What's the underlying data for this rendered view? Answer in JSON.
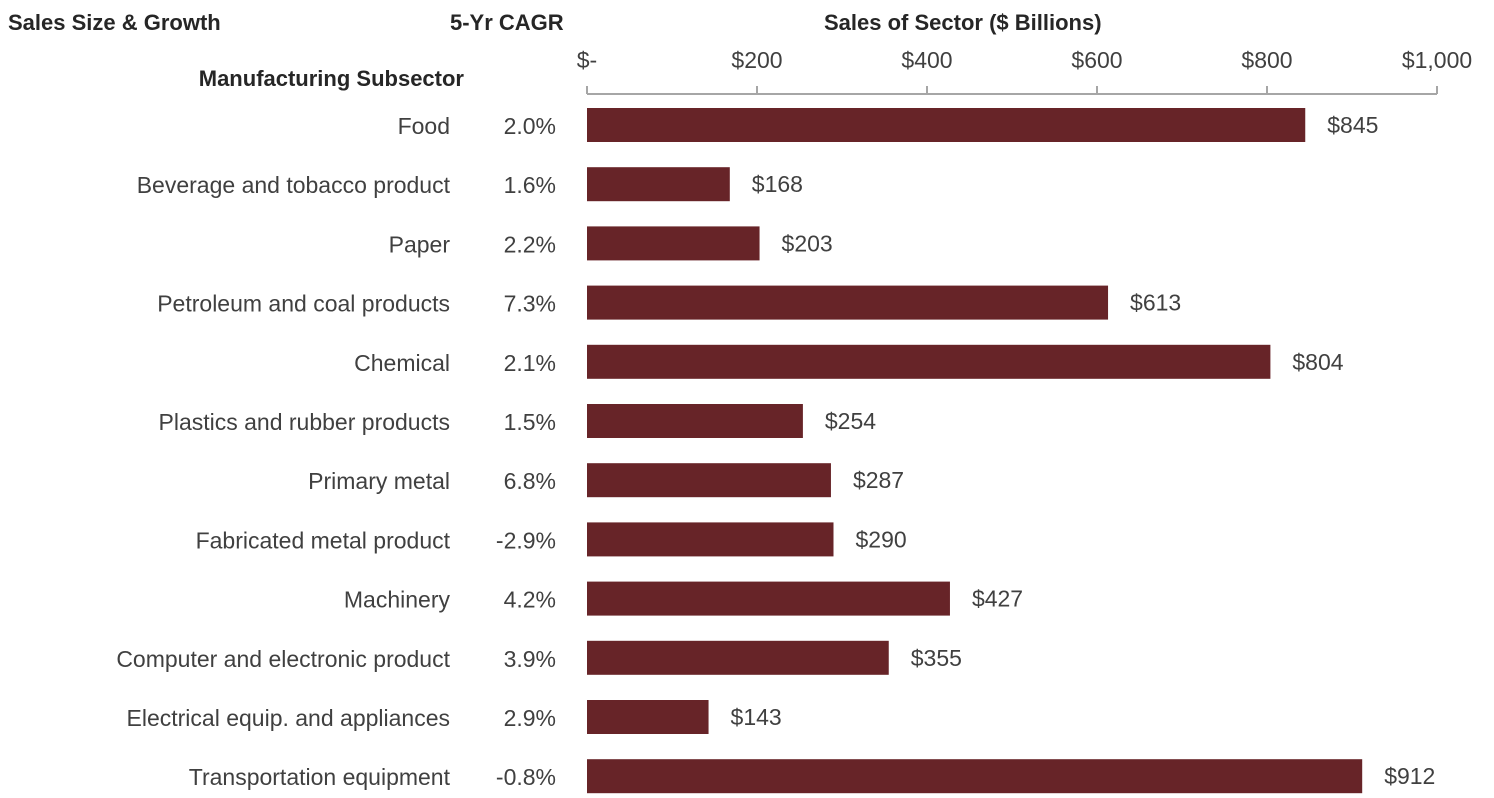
{
  "header": {
    "title": "Sales Size & Growth",
    "cagr": "5-Yr CAGR",
    "sales": "Sales of Sector ($ Billions)",
    "subsector": "Manufacturing Subsector"
  },
  "colors": {
    "bar": "#672428",
    "axis": "#a6a6a6"
  },
  "chart_data": {
    "type": "bar",
    "orientation": "horizontal",
    "title": "Sales of Sector ($ Billions)",
    "xlim": [
      0,
      1000
    ],
    "ticks": [
      0,
      200,
      400,
      600,
      800,
      1000
    ],
    "tick_labels": [
      "$-",
      "$200",
      "$400",
      "$600",
      "$800",
      "$1,000"
    ],
    "grid": false,
    "categories": [
      "Food",
      "Beverage and tobacco product",
      "Paper",
      "Petroleum and coal products",
      "Chemical",
      "Plastics and rubber products",
      "Primary metal",
      "Fabricated metal product",
      "Machinery",
      "Computer and electronic product",
      "Electrical equip. and appliances",
      "Transportation equipment"
    ],
    "values": [
      845,
      168,
      203,
      613,
      804,
      254,
      287,
      290,
      427,
      355,
      143,
      912
    ],
    "value_labels": [
      "$845",
      "$168",
      "$203",
      "$613",
      "$804",
      "$254",
      "$287",
      "$290",
      "$427",
      "$355",
      "$143",
      "$912"
    ],
    "cagr": [
      "2.0%",
      "1.6%",
      "2.2%",
      "7.3%",
      "2.1%",
      "1.5%",
      "6.8%",
      "-2.9%",
      "4.2%",
      "3.9%",
      "2.9%",
      "-0.8%"
    ]
  }
}
